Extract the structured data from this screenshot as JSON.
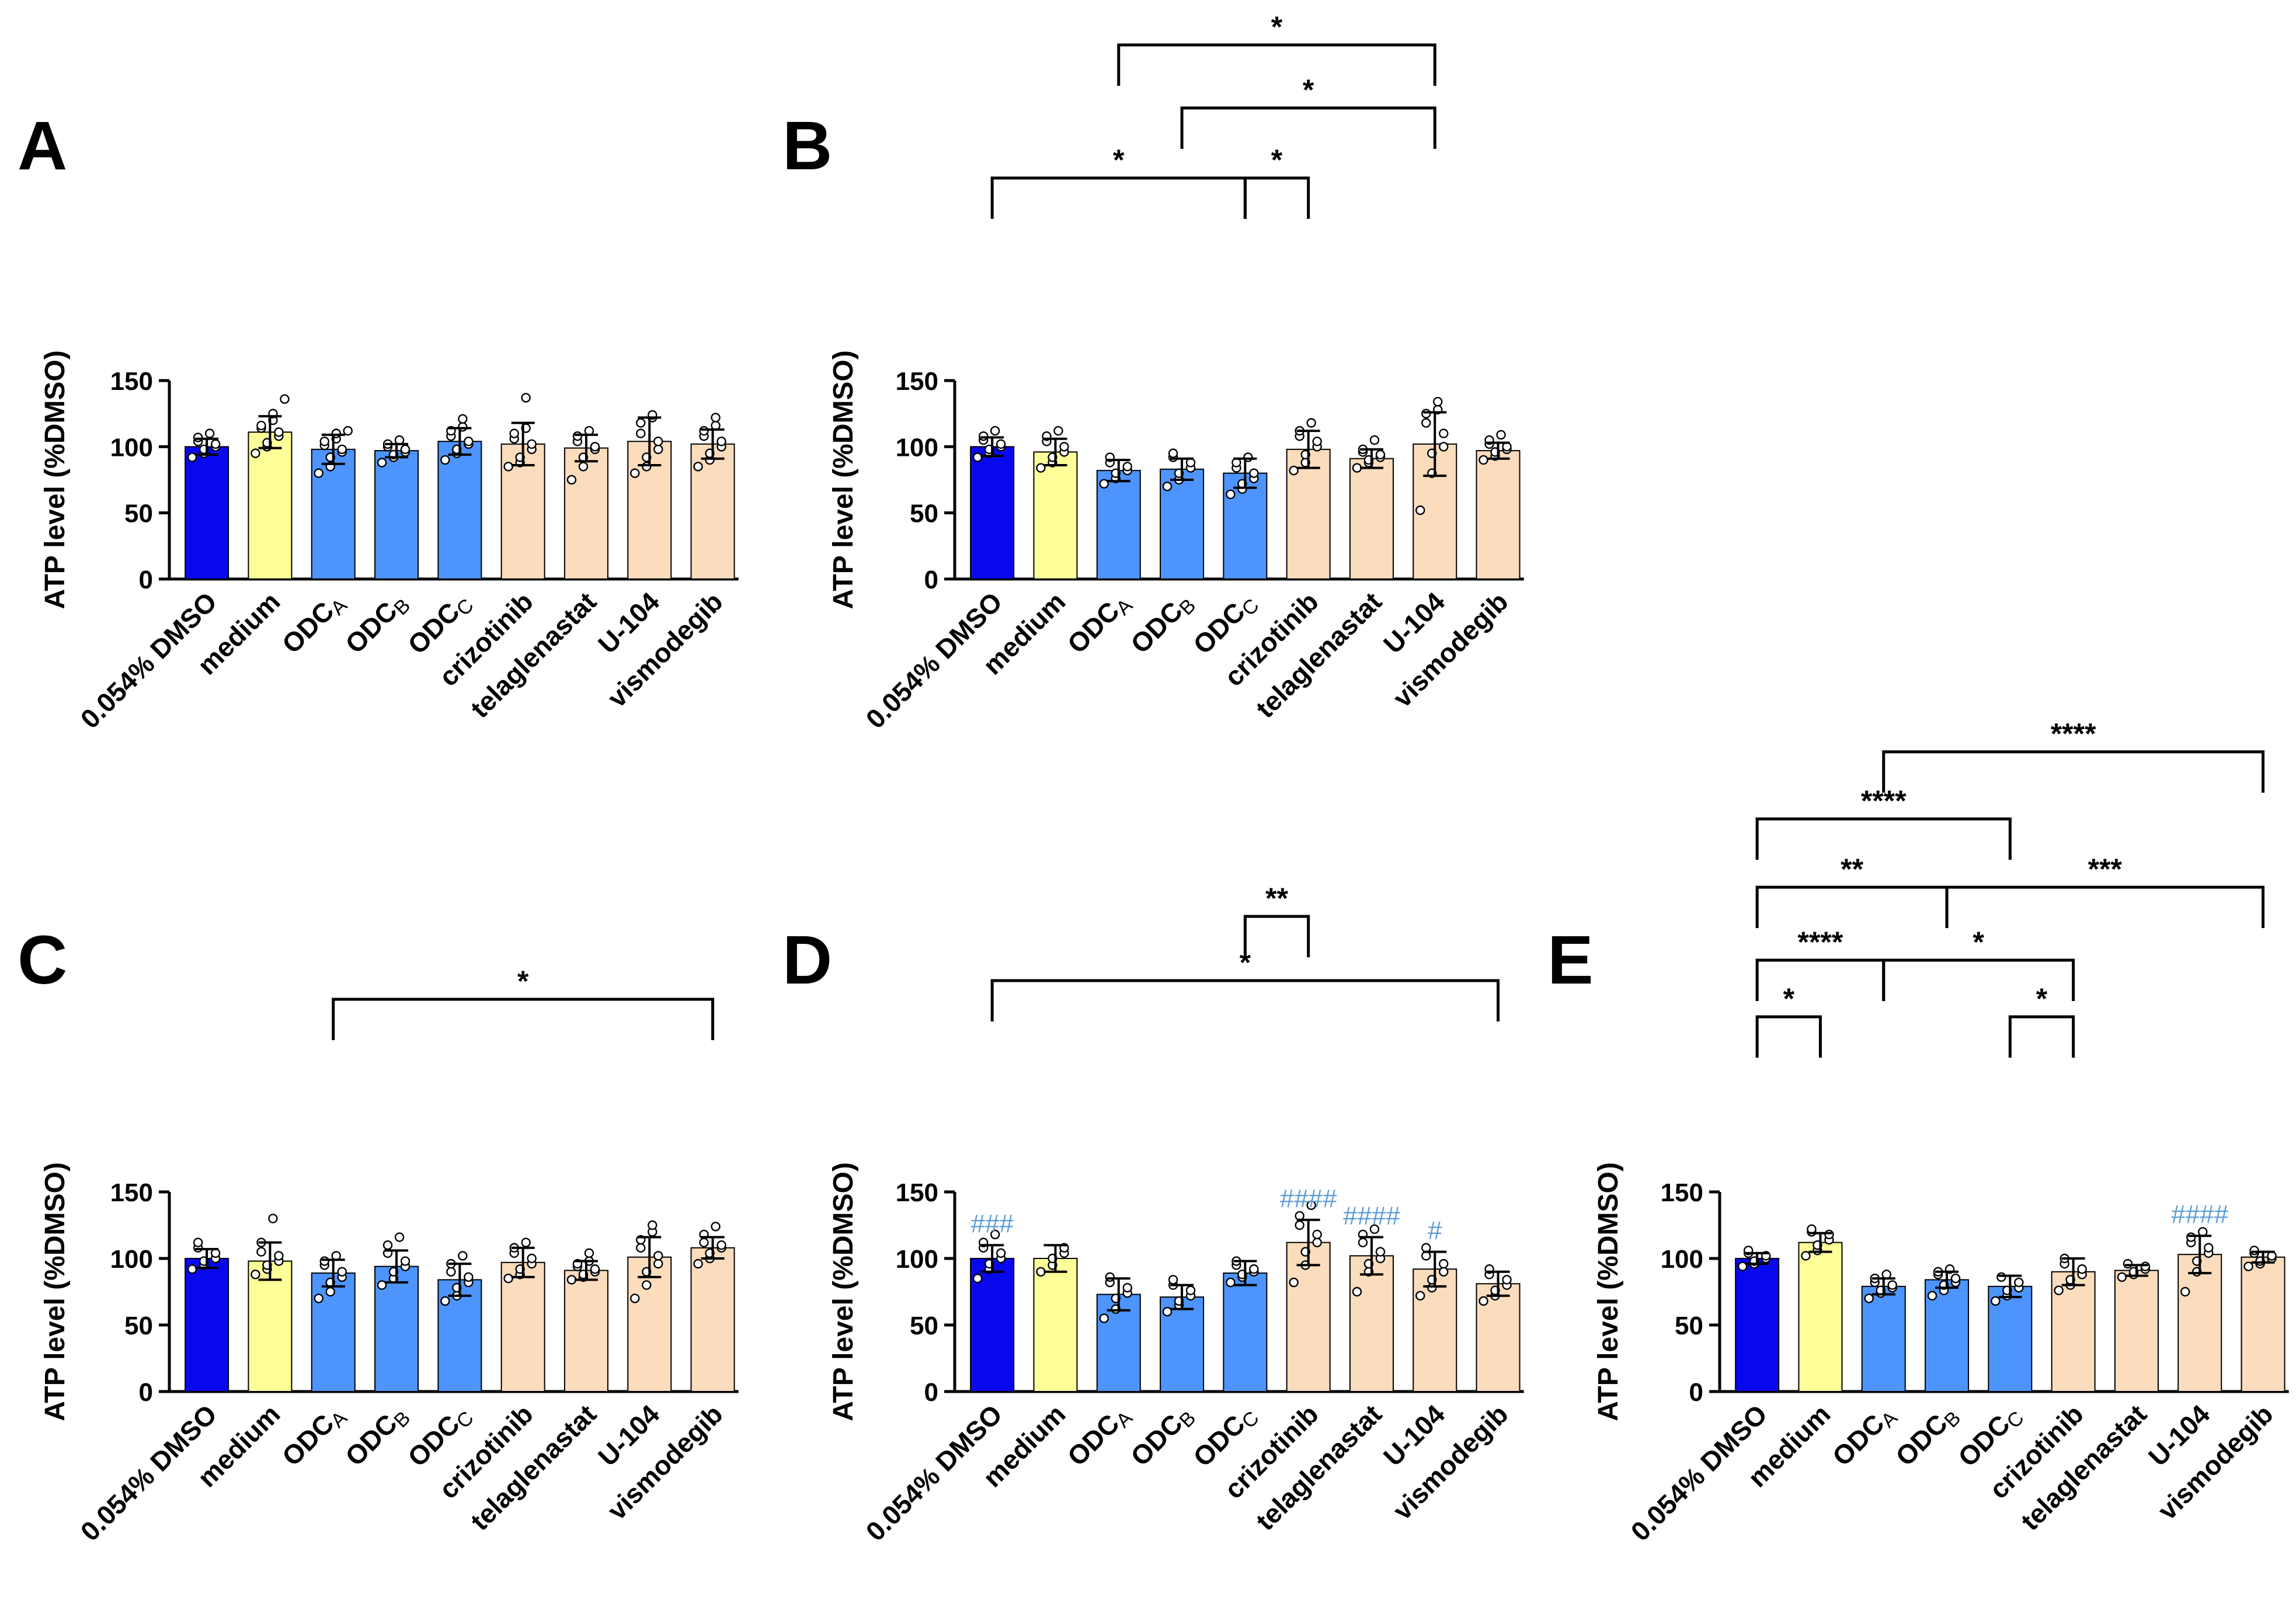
{
  "figure": {
    "ylabel": "ATP level (%DMSO)",
    "categories": [
      "0.054% DMSO",
      "medium",
      "ODC",
      "ODC",
      "ODC",
      "crizotinib",
      "telaglenastat",
      "U-104",
      "vismodegib"
    ],
    "category_subscripts": [
      "",
      "",
      "A",
      "B",
      "C",
      "",
      "",
      "",
      ""
    ],
    "colors": {
      "dmso": "#0808EE",
      "medium": "#FFFF99",
      "odc": "#4D94FF",
      "drug": "#FBDCBC",
      "hash": "#5B9BD5",
      "ink": "#000000"
    }
  },
  "chart_data": [
    {
      "panel": "A",
      "type": "bar",
      "ylim": [
        0,
        150
      ],
      "yticks": [
        0,
        50,
        100,
        150
      ],
      "ylabel": "ATP level (%DMSO)",
      "categories": [
        "0.054% DMSO",
        "medium",
        "ODCA",
        "ODCB",
        "ODCC",
        "crizotinib",
        "telaglenastat",
        "U-104",
        "vismodegib"
      ],
      "values": [
        100,
        111,
        98,
        97,
        104,
        102,
        99,
        104,
        102
      ],
      "errors": [
        6,
        12,
        11,
        5,
        10,
        16,
        10,
        18,
        11
      ],
      "points": [
        [
          92,
          95,
          98,
          100,
          102,
          104,
          107,
          110
        ],
        [
          95,
          100,
          103,
          108,
          111,
          114,
          116,
          120,
          125,
          136
        ],
        [
          80,
          85,
          92,
          96,
          98,
          101,
          104,
          106,
          110,
          112
        ],
        [
          88,
          92,
          94,
          96,
          98,
          100,
          102,
          105
        ],
        [
          90,
          95,
          98,
          102,
          104,
          108,
          112,
          115,
          121
        ],
        [
          85,
          88,
          92,
          98,
          102,
          106,
          110,
          114,
          137
        ],
        [
          75,
          85,
          92,
          98,
          100,
          104,
          108,
          112
        ],
        [
          80,
          85,
          92,
          98,
          104,
          110,
          118,
          122,
          124
        ],
        [
          85,
          90,
          95,
          100,
          104,
          108,
          112,
          116,
          122
        ]
      ],
      "hashes": [
        "",
        "",
        "",
        "",
        "",
        "",
        "",
        "",
        ""
      ],
      "brackets": []
    },
    {
      "panel": "B",
      "type": "bar",
      "ylim": [
        0,
        150
      ],
      "yticks": [
        0,
        50,
        100,
        150
      ],
      "ylabel": "ATP level (%DMSO)",
      "categories": [
        "0.054% DMSO",
        "medium",
        "ODCA",
        "ODCB",
        "ODCC",
        "crizotinib",
        "telaglenastat",
        "U-104",
        "vismodegib"
      ],
      "values": [
        100,
        96,
        82,
        83,
        80,
        98,
        91,
        102,
        97
      ],
      "errors": [
        7,
        10,
        8,
        8,
        11,
        14,
        7,
        24,
        6
      ],
      "points": [
        [
          92,
          95,
          98,
          100,
          102,
          105,
          108,
          112
        ],
        [
          84,
          88,
          92,
          96,
          100,
          104,
          108,
          112
        ],
        [
          72,
          76,
          80,
          82,
          85,
          88,
          92
        ],
        [
          70,
          75,
          80,
          84,
          88,
          92,
          95
        ],
        [
          64,
          68,
          72,
          76,
          80,
          84,
          88,
          92
        ],
        [
          82,
          88,
          94,
          100,
          104,
          108,
          112,
          118
        ],
        [
          84,
          88,
          90,
          92,
          94,
          96,
          98,
          105
        ],
        [
          52,
          80,
          95,
          100,
          110,
          118,
          125,
          128,
          134
        ],
        [
          90,
          93,
          96,
          98,
          100,
          102,
          105,
          109
        ]
      ],
      "hashes": [
        "",
        "",
        "",
        "",
        "",
        "",
        "",
        "",
        ""
      ],
      "brackets": [
        {
          "from": 0,
          "to": 4,
          "label": "*"
        },
        {
          "from": 4,
          "to": 5,
          "label": "*"
        },
        {
          "from": 3,
          "to": 7,
          "label": "*"
        },
        {
          "from": 2,
          "to": 7,
          "label": "*"
        }
      ]
    },
    {
      "panel": "C",
      "type": "bar",
      "ylim": [
        0,
        150
      ],
      "yticks": [
        0,
        50,
        100,
        150
      ],
      "ylabel": "ATP level (%DMSO)",
      "categories": [
        "0.054% DMSO",
        "medium",
        "ODCA",
        "ODCB",
        "ODCC",
        "crizotinib",
        "telaglenastat",
        "U-104",
        "vismodegib"
      ],
      "values": [
        100,
        98,
        89,
        94,
        84,
        97,
        91,
        101,
        108
      ],
      "errors": [
        7,
        14,
        10,
        12,
        12,
        11,
        7,
        15,
        8
      ],
      "points": [
        [
          92,
          95,
          98,
          100,
          104,
          108,
          112
        ],
        [
          88,
          92,
          95,
          98,
          102,
          105,
          112,
          130
        ],
        [
          70,
          75,
          82,
          86,
          90,
          95,
          98,
          102
        ],
        [
          80,
          85,
          90,
          94,
          98,
          104,
          110,
          116
        ],
        [
          68,
          72,
          78,
          82,
          86,
          90,
          96,
          102
        ],
        [
          85,
          88,
          92,
          96,
          100,
          104,
          108,
          112
        ],
        [
          84,
          86,
          88,
          90,
          92,
          94,
          96,
          98,
          104
        ],
        [
          70,
          80,
          90,
          96,
          102,
          108,
          114,
          120,
          125
        ],
        [
          96,
          100,
          104,
          108,
          110,
          112,
          118,
          124
        ]
      ],
      "hashes": [
        "",
        "",
        "",
        "",
        "",
        "",
        "",
        "",
        ""
      ],
      "brackets": [
        {
          "from": 2,
          "to": 8,
          "label": "*"
        }
      ]
    },
    {
      "panel": "D",
      "type": "bar",
      "ylim": [
        0,
        150
      ],
      "yticks": [
        0,
        50,
        100,
        150
      ],
      "ylabel": "ATP level (%DMSO)",
      "categories": [
        "0.054% DMSO",
        "medium",
        "ODCA",
        "ODCB",
        "ODCC",
        "crizotinib",
        "telaglenastat",
        "U-104",
        "vismodegib"
      ],
      "values": [
        100,
        100,
        73,
        71,
        89,
        112,
        102,
        92,
        81
      ],
      "errors": [
        10,
        10,
        12,
        9,
        9,
        17,
        14,
        13,
        9
      ],
      "points": [
        [
          85,
          92,
          96,
          100,
          104,
          108,
          112,
          118
        ],
        [
          90,
          95,
          100,
          104,
          108
        ],
        [
          55,
          62,
          70,
          74,
          78,
          82,
          86
        ],
        [
          60,
          65,
          68,
          72,
          76,
          80,
          84
        ],
        [
          82,
          86,
          88,
          90,
          92,
          95,
          98
        ],
        [
          82,
          95,
          105,
          112,
          118,
          125,
          132,
          140
        ],
        [
          75,
          90,
          96,
          100,
          105,
          112,
          118,
          122
        ],
        [
          72,
          78,
          84,
          90,
          96,
          102,
          108
        ],
        [
          68,
          72,
          76,
          80,
          84,
          88,
          92
        ]
      ],
      "hashes": [
        "###",
        "",
        "",
        "",
        "",
        "####",
        "####",
        "#",
        ""
      ],
      "brackets": [
        {
          "from": 4,
          "to": 5,
          "label": "**"
        },
        {
          "from": 0,
          "to": 8,
          "label": "*"
        }
      ]
    },
    {
      "panel": "E",
      "type": "bar",
      "ylim": [
        0,
        150
      ],
      "yticks": [
        0,
        50,
        100,
        150
      ],
      "ylabel": "ATP level (%DMSO)",
      "categories": [
        "0.054% DMSO",
        "medium",
        "ODCA",
        "ODCB",
        "ODCC",
        "crizotinib",
        "telaglenastat",
        "U-104",
        "vismodegib"
      ],
      "values": [
        100,
        112,
        79,
        84,
        79,
        90,
        91,
        103,
        101
      ],
      "errors": [
        4,
        7,
        6,
        6,
        8,
        10,
        4,
        14,
        4
      ],
      "points": [
        [
          94,
          96,
          98,
          100,
          102,
          104,
          106
        ],
        [
          102,
          106,
          110,
          114,
          118,
          120,
          122
        ],
        [
          70,
          74,
          76,
          78,
          80,
          82,
          85,
          88
        ],
        [
          72,
          76,
          80,
          82,
          85,
          88,
          90,
          92
        ],
        [
          68,
          72,
          76,
          78,
          82,
          86
        ],
        [
          76,
          80,
          84,
          88,
          92,
          96,
          100
        ],
        [
          86,
          88,
          90,
          92,
          94,
          96
        ],
        [
          75,
          90,
          98,
          104,
          108,
          112,
          116,
          120
        ],
        [
          94,
          96,
          98,
          100,
          102,
          104,
          106
        ]
      ],
      "hashes": [
        "",
        "",
        "",
        "",
        "",
        "",
        "",
        "####",
        ""
      ],
      "brackets": [
        {
          "from": 0,
          "to": 1,
          "label": "*"
        },
        {
          "from": 4,
          "to": 5,
          "label": "*"
        },
        {
          "from": 0,
          "to": 2,
          "label": "****"
        },
        {
          "from": 2,
          "to": 5,
          "label": "*"
        },
        {
          "from": 0,
          "to": 3,
          "label": "**"
        },
        {
          "from": 3,
          "to": 8,
          "label": "***"
        },
        {
          "from": 0,
          "to": 4,
          "label": "****"
        },
        {
          "from": 2,
          "to": 8,
          "label": "****"
        }
      ]
    }
  ]
}
